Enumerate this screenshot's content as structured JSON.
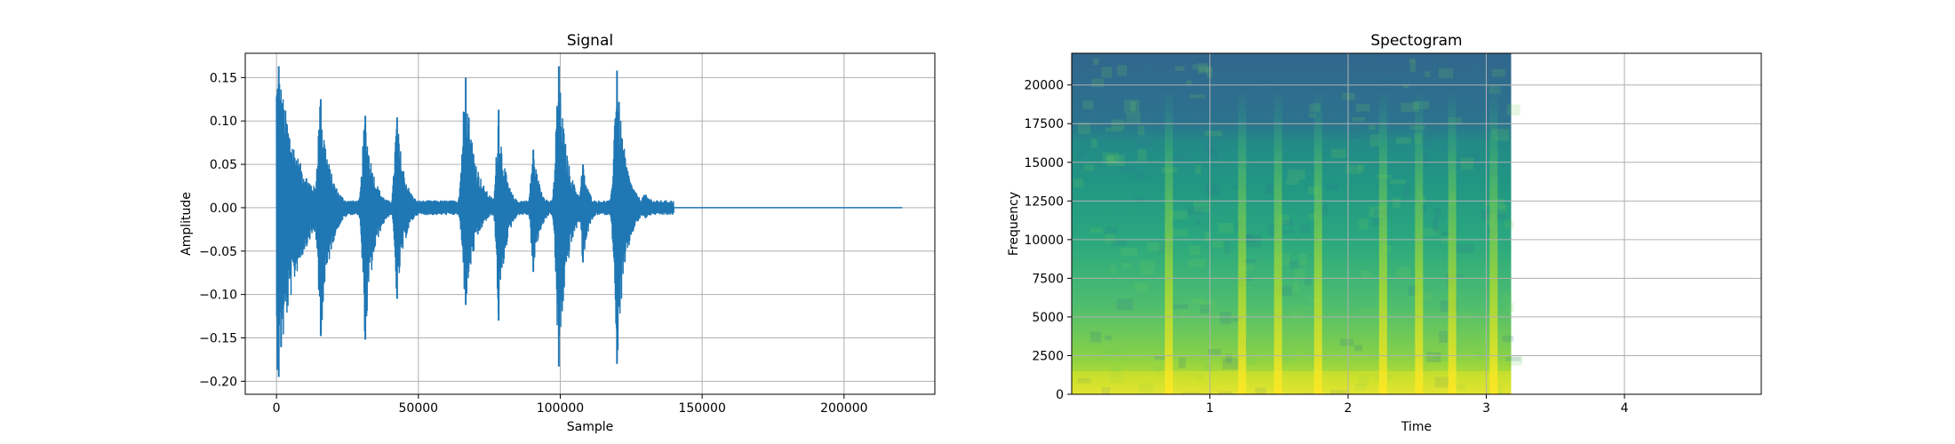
{
  "colors": {
    "signal_line": "#1f77b4",
    "grid": "#b0b0b0",
    "axes": "#000000",
    "colormap": "viridis"
  },
  "chart_data": [
    {
      "type": "line",
      "title": "Signal",
      "xlabel": "Sample",
      "ylabel": "Amplitude",
      "xlim": [
        -11000,
        232000
      ],
      "ylim": [
        -0.215,
        0.178
      ],
      "xticks": [
        0,
        50000,
        100000,
        150000,
        200000
      ],
      "xtick_labels": [
        "0",
        "50000",
        "100000",
        "150000",
        "200000"
      ],
      "yticks": [
        -0.2,
        -0.15,
        -0.1,
        -0.05,
        0.0,
        0.05,
        0.1,
        0.15
      ],
      "ytick_labels": [
        "−0.20",
        "−0.15",
        "−0.10",
        "−0.05",
        "0.00",
        "0.05",
        "0.10",
        "0.15"
      ],
      "grid": true,
      "series": [
        {
          "description": "speech-like waveform envelope; bursts with peak upper/lower amplitude, silent tail after ~140000 samples",
          "bursts": [
            {
              "center": 800,
              "upper": 0.163,
              "lower": -0.195,
              "width": 12000
            },
            {
              "center": 15600,
              "upper": 0.125,
              "lower": -0.148,
              "width": 6000
            },
            {
              "center": 31300,
              "upper": 0.106,
              "lower": -0.152,
              "width": 5500
            },
            {
              "center": 42500,
              "upper": 0.104,
              "lower": -0.105,
              "width": 5000
            },
            {
              "center": 66700,
              "upper": 0.15,
              "lower": -0.112,
              "width": 6500
            },
            {
              "center": 78300,
              "upper": 0.113,
              "lower": -0.13,
              "width": 4500
            },
            {
              "center": 90500,
              "upper": 0.067,
              "lower": -0.074,
              "width": 4500
            },
            {
              "center": 99500,
              "upper": 0.163,
              "lower": -0.183,
              "width": 5500
            },
            {
              "center": 108000,
              "upper": 0.05,
              "lower": -0.063,
              "width": 4000
            },
            {
              "center": 120000,
              "upper": 0.158,
              "lower": -0.18,
              "width": 5500
            },
            {
              "center": 130000,
              "upper": 0.015,
              "lower": -0.012,
              "width": 9000
            }
          ],
          "signal_end": 140000,
          "x_end": 220500
        }
      ]
    },
    {
      "type": "heatmap",
      "title": "Spectogram",
      "xlabel": "Time",
      "ylabel": "Frequency",
      "xlim": [
        0.0,
        4.99
      ],
      "ylim": [
        0,
        22050
      ],
      "xticks": [
        1,
        2,
        3,
        4
      ],
      "xtick_labels": [
        "1",
        "2",
        "3",
        "4"
      ],
      "yticks": [
        0,
        2500,
        5000,
        7500,
        10000,
        12500,
        15000,
        17500,
        20000
      ],
      "ytick_labels": [
        "0",
        "2500",
        "5000",
        "7500",
        "10000",
        "12500",
        "15000",
        "17500",
        "20000"
      ],
      "grid": true,
      "data_time_end": 3.18,
      "onsets": [
        0.7,
        1.23,
        1.49,
        1.78,
        2.25,
        2.51,
        2.75,
        3.05
      ],
      "high_band_cutoff": 17500
    }
  ]
}
